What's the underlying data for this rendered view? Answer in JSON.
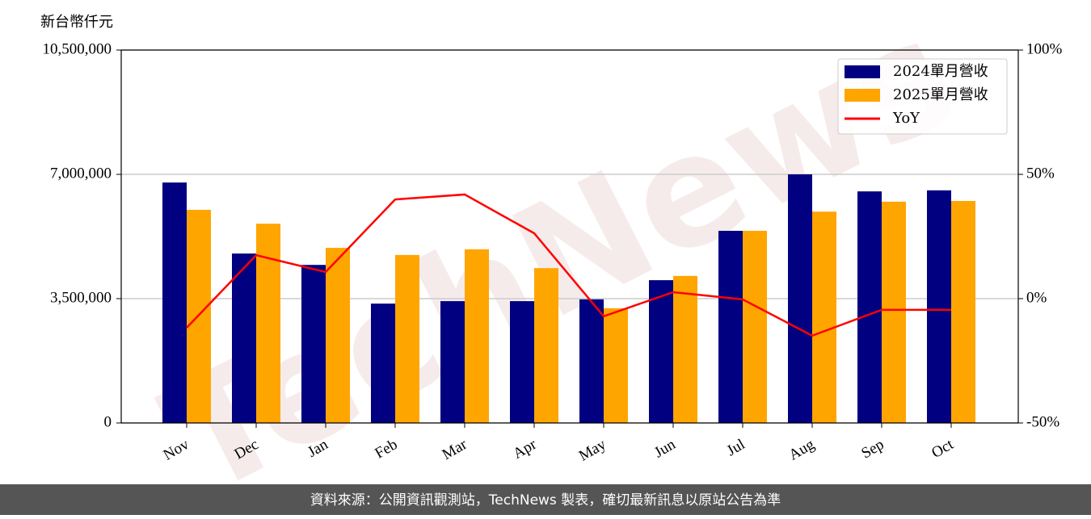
{
  "chart_data": {
    "type": "bar_line",
    "y_label": "新台幣仟元",
    "watermark": "TechNews",
    "source": "資料來源：公開資訊觀測站，TechNews 製表，確切最新訊息以原站公告為準",
    "categories": [
      "Nov",
      "Dec",
      "Jan",
      "Feb",
      "Mar",
      "Apr",
      "May",
      "Jun",
      "Jul",
      "Aug",
      "Sep",
      "Oct"
    ],
    "series": [
      {
        "name": "2024單月營收",
        "color": "#000080",
        "kind": "bar",
        "values": [
          6770000,
          4770000,
          4450000,
          3360000,
          3430000,
          3430000,
          3480000,
          4020000,
          5410000,
          7000000,
          6520000,
          6550000
        ]
      },
      {
        "name": "2025單月營收",
        "color": "#ffa500",
        "kind": "bar",
        "values": [
          6000000,
          5610000,
          4930000,
          4730000,
          4890000,
          4360000,
          3230000,
          4140000,
          5410000,
          5950000,
          6230000,
          6250000
        ]
      },
      {
        "name": "YoY",
        "color": "#ff0000",
        "kind": "line",
        "axis": "y2",
        "values": [
          -11.7,
          17.5,
          10.7,
          39.9,
          41.9,
          26.3,
          -7.1,
          2.6,
          -0.3,
          -14.9,
          -4.5,
          -4.5
        ]
      }
    ],
    "ylim": [
      0,
      10500000
    ],
    "yticks": [
      0,
      {
        "value": 3500000,
        "label": "3,500,000"
      },
      {
        "value": 7000000,
        "label": "7,000,000"
      },
      {
        "value": 10500000,
        "label": "10,500,000"
      }
    ],
    "y2lim": [
      -50,
      100
    ],
    "y2ticks": [
      {
        "value": -50,
        "label": "-50%"
      },
      {
        "value": 0,
        "label": "0%"
      },
      {
        "value": 50,
        "label": "50%"
      },
      {
        "value": 100,
        "label": "100%"
      }
    ],
    "grid": true,
    "legend": "upper right"
  }
}
